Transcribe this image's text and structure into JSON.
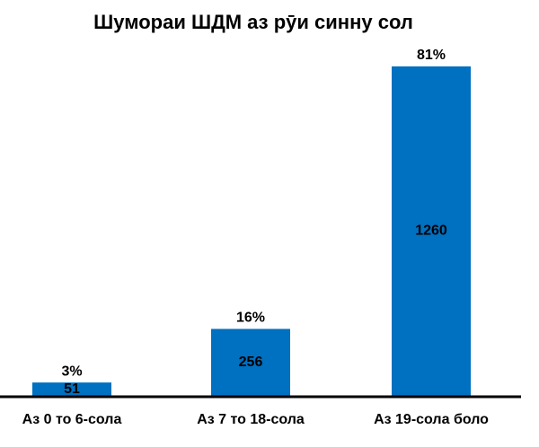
{
  "chart_data": {
    "type": "bar",
    "title": "Шумораи ШДМ аз рӯи синну сол",
    "categories": [
      "Аз 0 то 6-сола",
      "Аз 7 то 18-сола",
      "Аз 19-сола боло"
    ],
    "values": [
      51,
      256,
      1260
    ],
    "color": "#0070c0",
    "shares": [
      3,
      16,
      81
    ],
    "share_labels": [
      "3%",
      "16%",
      "81%"
    ]
  }
}
